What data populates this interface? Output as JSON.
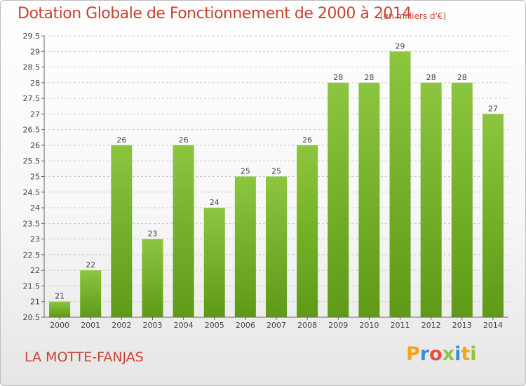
{
  "chart_data": {
    "type": "bar",
    "title": "Dotation Globale de Fonctionnement de 2000 à 2014",
    "subtitle": "(en milliers d'€)",
    "categories": [
      "2000",
      "2001",
      "2002",
      "2003",
      "2004",
      "2005",
      "2006",
      "2007",
      "2008",
      "2009",
      "2010",
      "2011",
      "2012",
      "2013",
      "2014"
    ],
    "values": [
      21,
      22,
      26,
      23,
      26,
      24,
      25,
      25,
      26,
      28,
      28,
      29,
      28,
      28,
      27
    ],
    "data_labels": [
      "21",
      "22",
      "26",
      "23",
      "26",
      "24",
      "25",
      "25",
      "26",
      "28",
      "28",
      "29",
      "28",
      "28",
      "27"
    ],
    "xlabel": "",
    "ylabel": "",
    "ylim": [
      20.5,
      29.5
    ],
    "yticks": [
      20.5,
      21,
      21.5,
      22,
      22.5,
      23,
      23.5,
      24,
      24.5,
      25,
      25.5,
      26,
      26.5,
      27,
      27.5,
      28,
      28.5,
      29,
      29.5
    ],
    "ytick_labels": [
      "20.5",
      "21",
      "21.5",
      "22",
      "22.5",
      "23",
      "23.5",
      "24",
      "24.5",
      "25",
      "25.5",
      "26",
      "26.5",
      "27",
      "27.5",
      "28",
      "28.5",
      "29",
      "29.5"
    ],
    "grid": true,
    "bar_color": "#8cc63f",
    "bar_color_dark": "#5e9a16"
  },
  "commune": "LA MOTTE-FANJAS",
  "logo": {
    "letters": [
      "P",
      "r",
      "o",
      "x",
      "i",
      "t",
      "i"
    ],
    "colors": [
      "#f7a21b",
      "#3a8fd6",
      "#e84c3d",
      "#8cc63f",
      "#3a8fd6",
      "#f7a21b",
      "#8cc63f"
    ]
  },
  "colors": {
    "title": "#c8432f",
    "grid": "#cccccc",
    "axis": "#666666"
  }
}
